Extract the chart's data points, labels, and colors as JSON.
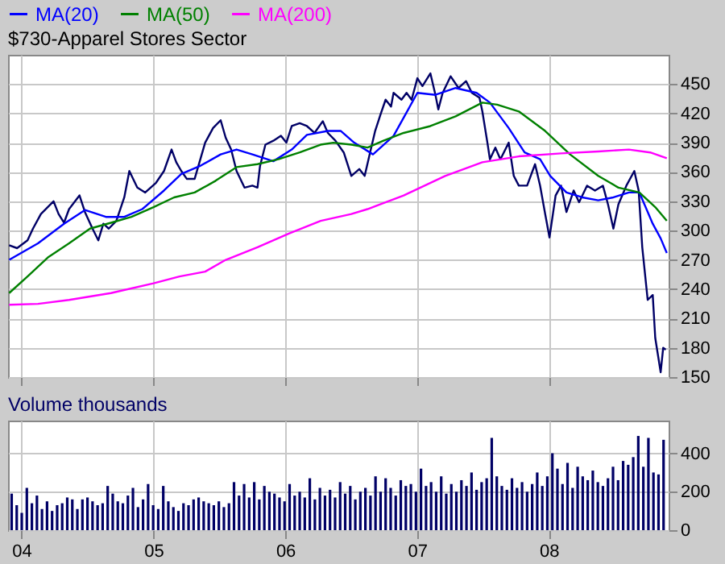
{
  "chart_data": [
    {
      "type": "line",
      "title": "$730-Apparel Stores Sector",
      "xlim": [
        "2003-11-25",
        "2008-11-28"
      ],
      "xticks": [
        {
          "value": "2004-01-01",
          "label": null
        },
        {
          "value": "2005-01-01",
          "label": null
        },
        {
          "value": "2006-01-01",
          "label": null
        },
        {
          "value": "2007-01-01",
          "label": null
        },
        {
          "value": "2008-01-01",
          "label": null
        }
      ],
      "ylim": [
        150,
        480
      ],
      "yticks": [
        150,
        180,
        210,
        240,
        270,
        300,
        330,
        360,
        390,
        420,
        450
      ],
      "tick_labels": "y",
      "grid": true,
      "legend": "top left",
      "series": [
        {
          "color": "#000066",
          "x": [
            "2003-11-28",
            "2003-12-20",
            "2004-01-18",
            "2004-02-02",
            "2004-02-24",
            "2004-03-30",
            "2004-04-13",
            "2004-04-28",
            "2004-05-12",
            "2004-06-10",
            "2004-06-25",
            "2004-07-16",
            "2004-08-01",
            "2004-08-15",
            "2004-08-30",
            "2004-09-20",
            "2004-10-12",
            "2004-10-26",
            "2004-11-17",
            "2004-12-09",
            "2005-01-08",
            "2005-01-30",
            "2005-02-20",
            "2005-03-05",
            "2005-03-19",
            "2005-04-03",
            "2005-04-25",
            "2005-05-24",
            "2005-06-15",
            "2005-07-06",
            "2005-07-20",
            "2005-08-04",
            "2005-08-19",
            "2005-09-10",
            "2005-10-02",
            "2005-10-16",
            "2005-10-23",
            "2005-11-07",
            "2005-11-29",
            "2005-12-20",
            "2006-01-04",
            "2006-01-19",
            "2006-02-10",
            "2006-03-02",
            "2006-03-23",
            "2006-04-15",
            "2006-04-29",
            "2006-05-20",
            "2006-06-12",
            "2006-07-03",
            "2006-07-25",
            "2006-08-09",
            "2006-08-24",
            "2006-09-07",
            "2006-09-22",
            "2006-10-06",
            "2006-10-21",
            "2006-10-28",
            "2006-11-19",
            "2006-12-03",
            "2006-12-17",
            "2007-01-02",
            "2007-01-16",
            "2007-02-07",
            "2007-02-21",
            "2007-03-01",
            "2007-03-13",
            "2007-04-04",
            "2007-04-26",
            "2007-05-17",
            "2007-06-02",
            "2007-06-23",
            "2007-07-01",
            "2007-07-15",
            "2007-07-22",
            "2007-08-06",
            "2007-08-20",
            "2007-09-12",
            "2007-09-26",
            "2007-10-10",
            "2007-11-02",
            "2007-11-24",
            "2007-12-08",
            "2007-12-22",
            "2008-01-03",
            "2008-01-20",
            "2008-02-04",
            "2008-02-19",
            "2008-03-10",
            "2008-03-25",
            "2008-04-16",
            "2008-05-08",
            "2008-05-30",
            "2008-06-13",
            "2008-06-28",
            "2008-07-12",
            "2008-08-03",
            "2008-08-25",
            "2008-09-06",
            "2008-09-16",
            "2008-10-01",
            "2008-10-15",
            "2008-10-22",
            "2008-11-06",
            "2008-11-13",
            "2008-11-20"
          ],
          "values": [
            285,
            282,
            290,
            302,
            317,
            330,
            317,
            308,
            322,
            336,
            319,
            302,
            290,
            307,
            302,
            310,
            334,
            361,
            344,
            339,
            349,
            361,
            383,
            370,
            361,
            353,
            353,
            390,
            405,
            413,
            395,
            383,
            361,
            344,
            346,
            344,
            366,
            388,
            392,
            397,
            390,
            407,
            410,
            407,
            400,
            412,
            400,
            392,
            380,
            356,
            363,
            356,
            380,
            402,
            419,
            434,
            427,
            441,
            434,
            441,
            434,
            456,
            448,
            461,
            439,
            424,
            441,
            458,
            446,
            453,
            441,
            436,
            422,
            390,
            373,
            385,
            373,
            390,
            356,
            346,
            346,
            368,
            346,
            317,
            293,
            336,
            346,
            319,
            341,
            329,
            346,
            341,
            346,
            327,
            302,
            327,
            346,
            361,
            341,
            283,
            229,
            234,
            190,
            155,
            180,
            178
          ]
        },
        {
          "name": "MA(20)",
          "color": "#0000ff",
          "x": [
            "2003-11-28",
            "2004-02-16",
            "2004-04-28",
            "2004-06-25",
            "2004-08-22",
            "2004-10-12",
            "2004-12-01",
            "2005-01-30",
            "2005-03-19",
            "2005-05-09",
            "2005-07-06",
            "2005-08-19",
            "2005-10-02",
            "2005-11-29",
            "2006-01-19",
            "2006-03-02",
            "2006-04-29",
            "2006-06-04",
            "2006-07-11",
            "2006-09-01",
            "2006-10-28",
            "2007-01-02",
            "2007-02-21",
            "2007-04-18",
            "2007-06-15",
            "2007-07-22",
            "2007-09-12",
            "2007-10-26",
            "2007-12-08",
            "2008-01-05",
            "2008-02-19",
            "2008-04-03",
            "2008-05-17",
            "2008-06-28",
            "2008-08-10",
            "2008-09-08",
            "2008-10-15",
            "2008-11-06",
            "2008-11-23"
          ],
          "values": [
            270,
            287,
            307,
            321,
            314,
            314,
            322,
            341,
            358,
            366,
            378,
            383,
            378,
            371,
            383,
            398,
            402,
            402,
            390,
            378,
            397,
            441,
            439,
            446,
            441,
            431,
            405,
            380,
            373,
            356,
            339,
            334,
            331,
            334,
            339,
            339,
            307,
            292,
            277
          ]
        },
        {
          "name": "MA(50)",
          "color": "#008000",
          "x": [
            "2003-11-28",
            "2004-01-18",
            "2004-03-16",
            "2004-05-12",
            "2004-07-09",
            "2004-09-05",
            "2004-11-01",
            "2005-01-01",
            "2005-02-27",
            "2005-04-25",
            "2005-06-22",
            "2005-08-19",
            "2005-10-16",
            "2005-12-13",
            "2006-02-10",
            "2006-04-09",
            "2006-05-14",
            "2006-07-03",
            "2006-08-17",
            "2006-09-30",
            "2006-11-25",
            "2007-02-07",
            "2007-04-18",
            "2007-07-01",
            "2007-08-11",
            "2007-10-10",
            "2007-12-22",
            "2008-02-29",
            "2008-05-17",
            "2008-07-12",
            "2008-09-08",
            "2008-10-22",
            "2008-11-23"
          ],
          "values": [
            236,
            253,
            273,
            287,
            302,
            308,
            314,
            324,
            334,
            339,
            351,
            365,
            368,
            373,
            380,
            388,
            390,
            388,
            385,
            392,
            400,
            407,
            417,
            431,
            429,
            422,
            402,
            378,
            356,
            344,
            339,
            324,
            310
          ]
        },
        {
          "name": "MA(200)",
          "color": "#ff00ff",
          "x": [
            "2003-11-28",
            "2004-02-16",
            "2004-05-12",
            "2004-09-05",
            "2005-01-01",
            "2005-03-14",
            "2005-05-24",
            "2005-07-20",
            "2005-10-16",
            "2006-01-11",
            "2006-04-09",
            "2006-07-03",
            "2006-08-17",
            "2006-11-25",
            "2007-03-20",
            "2007-07-01",
            "2007-10-10",
            "2008-02-04",
            "2008-05-17",
            "2008-08-10",
            "2008-10-08",
            "2008-11-23"
          ],
          "values": [
            224,
            225,
            229,
            236,
            246,
            253,
            258,
            270,
            283,
            297,
            310,
            317,
            322,
            336,
            356,
            370,
            376,
            379,
            381,
            383,
            380,
            374
          ]
        }
      ]
    },
    {
      "type": "bar",
      "title": "Volume thousands",
      "color": "#000066",
      "xlim": [
        "2003-11-25",
        "2008-11-28"
      ],
      "xticks": [
        {
          "value": "2004-01-01",
          "label": "04"
        },
        {
          "value": "2005-01-01",
          "label": "05"
        },
        {
          "value": "2006-01-01",
          "label": "06"
        },
        {
          "value": "2007-01-01",
          "label": "07"
        },
        {
          "value": "2008-01-01",
          "label": "08"
        }
      ],
      "ylim": [
        0,
        570
      ],
      "yticks": [
        0,
        200,
        400
      ],
      "grid": true,
      "x": [
        "2003-12-05",
        "2003-12-19",
        "2004-01-02",
        "2004-01-16",
        "2004-01-30",
        "2004-02-13",
        "2004-02-27",
        "2004-03-12",
        "2004-03-26",
        "2004-04-09",
        "2004-04-23",
        "2004-05-07",
        "2004-05-21",
        "2004-06-04",
        "2004-06-18",
        "2004-07-02",
        "2004-07-16",
        "2004-07-30",
        "2004-08-13",
        "2004-08-27",
        "2004-09-10",
        "2004-09-24",
        "2004-10-08",
        "2004-10-22",
        "2004-11-05",
        "2004-11-19",
        "2004-12-03",
        "2004-12-17",
        "2004-12-31",
        "2005-01-14",
        "2005-01-28",
        "2005-02-11",
        "2005-02-25",
        "2005-03-11",
        "2005-03-25",
        "2005-04-08",
        "2005-04-22",
        "2005-05-06",
        "2005-05-20",
        "2005-06-03",
        "2005-06-17",
        "2005-07-01",
        "2005-07-15",
        "2005-07-29",
        "2005-08-12",
        "2005-08-26",
        "2005-09-09",
        "2005-09-23",
        "2005-10-07",
        "2005-10-21",
        "2005-11-04",
        "2005-11-18",
        "2005-12-02",
        "2005-12-16",
        "2005-12-30",
        "2006-01-13",
        "2006-01-27",
        "2006-02-10",
        "2006-02-24",
        "2006-03-10",
        "2006-03-24",
        "2006-04-07",
        "2006-04-21",
        "2006-05-05",
        "2006-05-19",
        "2006-06-02",
        "2006-06-16",
        "2006-06-30",
        "2006-07-14",
        "2006-07-28",
        "2006-08-11",
        "2006-08-25",
        "2006-09-08",
        "2006-09-22",
        "2006-10-06",
        "2006-10-20",
        "2006-11-03",
        "2006-11-17",
        "2006-12-01",
        "2006-12-15",
        "2006-12-29",
        "2007-01-12",
        "2007-01-26",
        "2007-02-09",
        "2007-02-23",
        "2007-03-09",
        "2007-03-23",
        "2007-04-06",
        "2007-04-20",
        "2007-05-04",
        "2007-05-18",
        "2007-06-01",
        "2007-06-15",
        "2007-06-29",
        "2007-07-13",
        "2007-07-27",
        "2007-08-10",
        "2007-08-24",
        "2007-09-07",
        "2007-09-21",
        "2007-10-05",
        "2007-10-19",
        "2007-11-02",
        "2007-11-16",
        "2007-11-30",
        "2007-12-14",
        "2007-12-28",
        "2008-01-11",
        "2008-01-25",
        "2008-02-08",
        "2008-02-22",
        "2008-03-07",
        "2008-03-21",
        "2008-04-04",
        "2008-04-18",
        "2008-05-02",
        "2008-05-16",
        "2008-05-30",
        "2008-06-13",
        "2008-06-27",
        "2008-07-11",
        "2008-07-25",
        "2008-08-08",
        "2008-08-22",
        "2008-09-05",
        "2008-09-19",
        "2008-10-03",
        "2008-10-17",
        "2008-10-31",
        "2008-11-14"
      ],
      "values": [
        190,
        130,
        90,
        220,
        140,
        180,
        110,
        150,
        100,
        130,
        140,
        170,
        160,
        110,
        160,
        170,
        150,
        130,
        140,
        230,
        190,
        150,
        140,
        180,
        220,
        120,
        160,
        240,
        130,
        110,
        230,
        150,
        120,
        100,
        140,
        130,
        160,
        170,
        150,
        140,
        130,
        150,
        120,
        140,
        250,
        180,
        240,
        170,
        250,
        160,
        230,
        200,
        190,
        170,
        150,
        240,
        180,
        200,
        170,
        270,
        160,
        220,
        180,
        210,
        170,
        250,
        190,
        230,
        160,
        200,
        220,
        180,
        280,
        200,
        270,
        220,
        180,
        260,
        230,
        240,
        200,
        320,
        230,
        250,
        200,
        280,
        190,
        240,
        200,
        260,
        230,
        300,
        210,
        250,
        270,
        480,
        280,
        230,
        210,
        270,
        220,
        250,
        200,
        240,
        300,
        230,
        280,
        400,
        320,
        240,
        350,
        220,
        330,
        280,
        260,
        310,
        250,
        230,
        270,
        330,
        260,
        360,
        340,
        380,
        490,
        330,
        480,
        300,
        290,
        470
      ]
    }
  ]
}
